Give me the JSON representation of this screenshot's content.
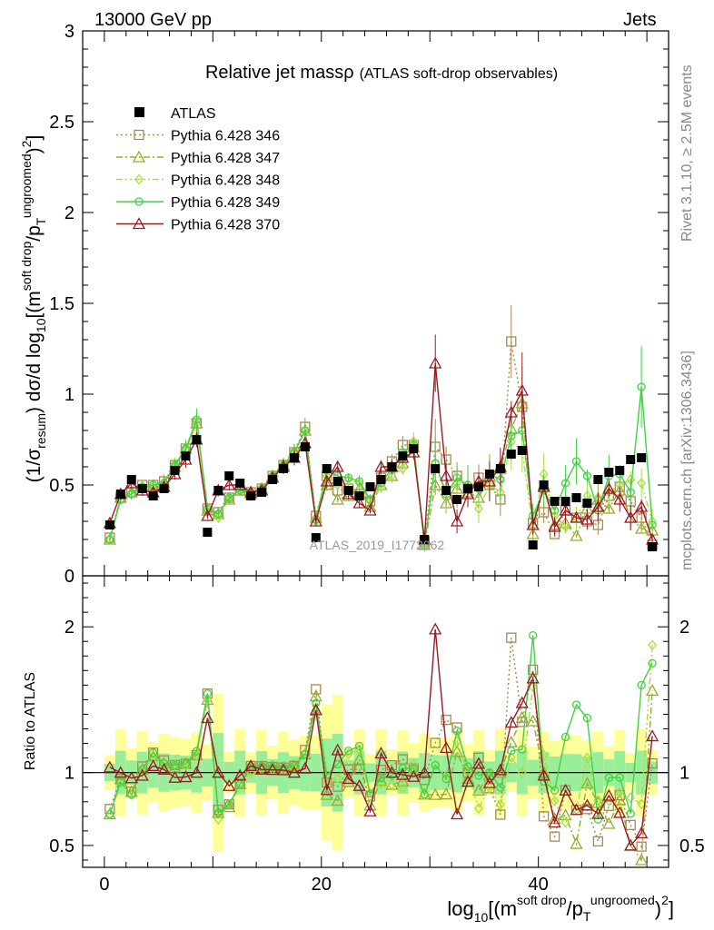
{
  "header": {
    "left": "13000 GeV pp",
    "right": "Jets"
  },
  "side_labels": {
    "rivet": "Rivet 3.1.10, ≥ 2.5M events",
    "source": "mcplots.cern.ch [arXiv:1306.3436]"
  },
  "chart_data": {
    "type": "line",
    "title": "Relative jet massρ",
    "subtitle": "(ATLAS soft-drop observables)",
    "watermark": "ATLAS_2019_I1772062",
    "xlim": [
      -2,
      52
    ],
    "main_ylim": [
      0,
      3
    ],
    "ratio_ylim": [
      0.35,
      2.35
    ],
    "xticks": [
      0,
      20,
      40
    ],
    "main_yticks": [
      "0",
      "0.5",
      "1",
      "1.5",
      "2",
      "2.5",
      "3"
    ],
    "ratio_yticks": [
      "0.5",
      "1",
      "2"
    ],
    "ratio_ylabel": "Ratio to ATLAS",
    "legend_position": "top-left",
    "x": [
      0.5,
      1.5,
      2.5,
      3.5,
      4.5,
      5.5,
      6.5,
      7.5,
      8.5,
      9.5,
      10.5,
      11.5,
      12.5,
      13.5,
      14.5,
      15.5,
      16.5,
      17.5,
      18.5,
      19.5,
      20.5,
      21.5,
      22.5,
      23.5,
      24.5,
      25.5,
      26.5,
      27.5,
      28.5,
      29.5,
      30.5,
      31.5,
      32.5,
      33.5,
      34.5,
      35.5,
      36.5,
      37.5,
      38.5,
      39.5,
      40.5,
      41.5,
      42.5,
      43.5,
      44.5,
      45.5,
      46.5,
      47.5,
      48.5,
      49.5,
      50.5
    ],
    "data": {
      "name": "ATLAS",
      "values": [
        0.28,
        0.45,
        0.53,
        0.48,
        0.44,
        0.48,
        0.58,
        0.66,
        0.75,
        0.24,
        0.47,
        0.55,
        0.51,
        0.44,
        0.46,
        0.53,
        0.59,
        0.65,
        0.71,
        0.21,
        0.59,
        0.52,
        0.47,
        0.44,
        0.49,
        0.53,
        0.6,
        0.66,
        0.7,
        0.2,
        0.59,
        0.47,
        0.42,
        0.48,
        0.49,
        0.56,
        0.59,
        0.67,
        0.69,
        0.17,
        0.5,
        0.41,
        0.41,
        0.43,
        0.4,
        0.53,
        0.57,
        0.58,
        0.64,
        0.65,
        0.16
      ]
    },
    "series": [
      {
        "name": "Pythia 6.428 346",
        "color": "#a88a4e",
        "marker": "square",
        "dash": "2,3",
        "values": [
          0.21,
          0.43,
          0.46,
          0.5,
          0.5,
          0.52,
          0.61,
          0.7,
          0.84,
          0.37,
          0.35,
          0.43,
          0.47,
          0.46,
          0.48,
          0.55,
          0.61,
          0.68,
          0.82,
          0.33,
          0.55,
          0.47,
          0.48,
          0.45,
          0.41,
          0.54,
          0.63,
          0.72,
          0.72,
          0.19,
          0.71,
          0.64,
          0.55,
          0.48,
          0.54,
          0.5,
          0.42,
          1.29,
          0.93,
          0.29,
          0.35,
          0.23,
          0.36,
          0.32,
          0.3,
          0.28,
          0.44,
          0.49,
          0.41,
          0.32,
          0.17
        ]
      },
      {
        "name": "Pythia 6.428 347",
        "color": "#9aaa2a",
        "marker": "triangle",
        "dash": "7,3,2,3",
        "values": [
          0.2,
          0.43,
          0.46,
          0.49,
          0.49,
          0.51,
          0.6,
          0.7,
          0.84,
          0.36,
          0.34,
          0.42,
          0.47,
          0.45,
          0.48,
          0.55,
          0.61,
          0.68,
          0.8,
          0.32,
          0.5,
          0.42,
          0.44,
          0.48,
          0.38,
          0.5,
          0.55,
          0.62,
          0.71,
          0.17,
          0.5,
          0.4,
          0.48,
          0.46,
          0.43,
          0.55,
          0.59,
          0.81,
          0.95,
          0.23,
          0.5,
          0.28,
          0.29,
          0.22,
          0.37,
          0.42,
          0.37,
          0.47,
          0.32,
          0.26,
          0.25
        ]
      },
      {
        "name": "Pythia 6.428 348",
        "color": "#a6e040",
        "marker": "diamond",
        "dash": "7,3,2,3,2,3",
        "values": [
          0.2,
          0.42,
          0.45,
          0.49,
          0.49,
          0.51,
          0.61,
          0.69,
          0.84,
          0.36,
          0.32,
          0.43,
          0.47,
          0.44,
          0.47,
          0.54,
          0.6,
          0.67,
          0.8,
          0.3,
          0.55,
          0.5,
          0.53,
          0.51,
          0.41,
          0.49,
          0.55,
          0.59,
          0.74,
          0.17,
          0.62,
          0.46,
          0.51,
          0.48,
          0.37,
          0.5,
          0.46,
          0.74,
          0.69,
          0.27,
          0.56,
          0.33,
          0.27,
          0.32,
          0.44,
          0.43,
          0.46,
          0.5,
          0.53,
          0.51,
          0.3
        ]
      },
      {
        "name": "Pythia 6.428 349",
        "color": "#46d046",
        "marker": "circle",
        "dash": "",
        "values": [
          0.2,
          0.42,
          0.45,
          0.49,
          0.5,
          0.51,
          0.61,
          0.7,
          0.86,
          0.37,
          0.34,
          0.43,
          0.47,
          0.46,
          0.48,
          0.55,
          0.61,
          0.68,
          0.8,
          0.31,
          0.58,
          0.55,
          0.54,
          0.52,
          0.42,
          0.51,
          0.59,
          0.68,
          0.72,
          0.17,
          0.62,
          0.45,
          0.54,
          0.5,
          0.48,
          0.56,
          0.53,
          0.77,
          0.8,
          0.33,
          0.47,
          0.36,
          0.51,
          0.63,
          0.55,
          0.36,
          0.55,
          0.56,
          0.46,
          1.04,
          0.28
        ]
      },
      {
        "name": "Pythia 6.428 370",
        "color": "#9a1a24",
        "marker": "triangle",
        "dash": "",
        "values": [
          0.29,
          0.45,
          0.51,
          0.47,
          0.46,
          0.49,
          0.56,
          0.64,
          0.75,
          0.33,
          0.47,
          0.5,
          0.5,
          0.46,
          0.47,
          0.54,
          0.6,
          0.65,
          0.73,
          0.3,
          0.52,
          0.6,
          0.45,
          0.4,
          0.36,
          0.6,
          0.6,
          0.65,
          0.68,
          0.2,
          1.17,
          0.55,
          0.3,
          0.45,
          0.52,
          0.52,
          0.6,
          0.9,
          1.02,
          0.28,
          0.49,
          0.27,
          0.36,
          0.32,
          0.31,
          0.38,
          0.48,
          0.42,
          0.32,
          0.38,
          0.2
        ]
      }
    ]
  },
  "axis_labels": {
    "ylabel_main": "(1/σresum) dσ/d log10[(msoft drop/pTungroomed)2]",
    "xlabel": "log10[(msoft drop/pTungroomed)2]"
  }
}
